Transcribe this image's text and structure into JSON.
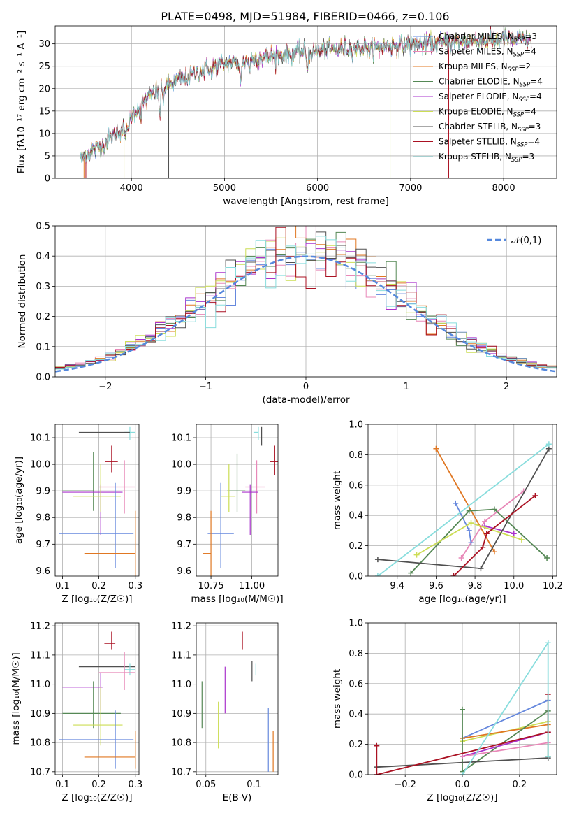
{
  "figure_title": "PLATE=0498, MJD=51984, FIBERID=0466, z=0.106",
  "colors": {
    "chabrier_miles": "#6688dd",
    "salpeter_miles": "#e888b8",
    "kroupa_miles": "#e07722",
    "chabrier_elodie": "#558855",
    "salpeter_elodie": "#aa33cc",
    "kroupa_elodie": "#ccdd55",
    "chabrier_stelib": "#505050",
    "salpeter_stelib": "#aa1122",
    "kroupa_stelib": "#88dddd",
    "gauss": "#5588dd"
  },
  "chart_data": [
    {
      "id": "spectrum",
      "type": "line",
      "xlabel": "wavelength [Angstrom, rest frame]",
      "ylabel": "Flux [fλ10⁻¹⁷ erg cm⁻² s⁻¹ A⁻¹]",
      "xlim": [
        3180,
        8570
      ],
      "ylim": [
        0,
        34
      ],
      "xticks": [
        4000,
        5000,
        6000,
        7000,
        8000
      ],
      "yticks": [
        0,
        5,
        10,
        15,
        20,
        25,
        30
      ],
      "grid": true,
      "legend_position": "right",
      "continuum": {
        "x": [
          3450,
          3600,
          3700,
          3800,
          3900,
          4000,
          4200,
          4400,
          4600,
          4800,
          5000,
          5200,
          5400,
          5600,
          5800,
          6000,
          6200,
          6400,
          6600,
          6800,
          7000,
          7200,
          7400,
          7600,
          7800,
          8000,
          8200,
          8300
        ],
        "y": [
          4.5,
          6.5,
          7.5,
          9.5,
          11.0,
          14.0,
          18.5,
          21.0,
          22.5,
          24.5,
          25.5,
          26.0,
          27.0,
          27.3,
          28.0,
          28.3,
          28.8,
          29.0,
          29.2,
          29.5,
          29.8,
          30.0,
          30.3,
          30.5,
          30.7,
          31.0,
          31.0,
          30.5
        ]
      },
      "absorption_features": [
        {
          "x": 3934,
          "depth": 4
        },
        {
          "x": 3969,
          "depth": 4
        },
        {
          "x": 4102,
          "depth": 3
        },
        {
          "x": 4304,
          "depth": 6
        },
        {
          "x": 4340,
          "depth": 3
        },
        {
          "x": 4861,
          "depth": 2
        },
        {
          "x": 5175,
          "depth": 5
        },
        {
          "x": 5270,
          "depth": 2
        },
        {
          "x": 5890,
          "depth": 4
        },
        {
          "x": 6563,
          "depth": 1.5
        }
      ],
      "series": [
        {
          "name": "Chabrier MILES, N",
          "sub": "SSP",
          "suffix": "=3",
          "color_key": "chabrier_miles"
        },
        {
          "name": "Salpeter MILES, N",
          "sub": "SSP",
          "suffix": "=4",
          "color_key": "salpeter_miles"
        },
        {
          "name": "Kroupa MILES, N",
          "sub": "SSP",
          "suffix": "=2",
          "color_key": "kroupa_miles",
          "dropouts": [
            3490,
            7405
          ]
        },
        {
          "name": "Chabrier ELODIE, N",
          "sub": "SSP",
          "suffix": "=4",
          "color_key": "chabrier_elodie"
        },
        {
          "name": "Salpeter ELODIE, N",
          "sub": "SSP",
          "suffix": "=4",
          "color_key": "salpeter_elodie"
        },
        {
          "name": "Kroupa ELODIE, N",
          "sub": "SSP",
          "suffix": "=4",
          "color_key": "kroupa_elodie",
          "dropouts": [
            3920,
            6780
          ]
        },
        {
          "name": "Chabrier STELIB, N",
          "sub": "SSP",
          "suffix": "=3",
          "color_key": "chabrier_stelib",
          "dropouts": [
            4400
          ]
        },
        {
          "name": "Salpeter STELIB, N",
          "sub": "SSP",
          "suffix": "=4",
          "color_key": "salpeter_stelib",
          "dropouts": [
            3510,
            7410
          ]
        },
        {
          "name": "Kroupa STELIB, N",
          "sub": "SSP",
          "suffix": "=3",
          "color_key": "kroupa_stelib"
        }
      ]
    },
    {
      "id": "residuals",
      "type": "step",
      "xlabel": "(data-model)/error",
      "ylabel": "Normed distribution",
      "xlim": [
        -2.5,
        2.5
      ],
      "ylim": [
        0,
        0.5
      ],
      "xticks": [
        -2,
        -1,
        0,
        1,
        2
      ],
      "yticks": [
        0.0,
        0.1,
        0.2,
        0.3,
        0.4,
        0.5
      ],
      "grid": true,
      "legend_position": "top-right",
      "bin_edges": [
        -2.5,
        2.5
      ],
      "nbins": 50,
      "gaussian": {
        "label": "𝒩(0,1)",
        "mean": 0,
        "sigma": 1
      }
    },
    {
      "id": "age_vs_Z",
      "type": "errorbar",
      "xlabel": "Z [log₁₀(Z/Z☉)]",
      "ylabel": "age  [log₁₀(age/yr)]",
      "xlim": [
        0.08,
        0.31
      ],
      "ylim": [
        9.58,
        10.15
      ],
      "xticks": [
        0.1,
        0.2,
        0.3
      ],
      "yticks": [
        9.6,
        9.7,
        9.8,
        9.9,
        10.0,
        10.1
      ],
      "grid": true,
      "points": [
        {
          "color_key": "kroupa_stelib",
          "x": 0.285,
          "xerr": [
            0.015,
            0.015
          ],
          "y": 10.12,
          "yerr": [
            0.03,
            0.02
          ]
        },
        {
          "color_key": "chabrier_stelib",
          "x": 0.285,
          "xerr": [
            0.14,
            0.0
          ],
          "y": 10.12,
          "yerr": [
            0.0,
            0.0
          ]
        },
        {
          "color_key": "salpeter_stelib",
          "x": 0.235,
          "xerr": [
            0.017,
            0.017
          ],
          "y": 10.01,
          "yerr": [
            0.04,
            0.06
          ]
        },
        {
          "color_key": "salpeter_miles",
          "x": 0.27,
          "xerr": [
            0.07,
            0.03
          ],
          "y": 9.915,
          "yerr": [
            0.1,
            0.1
          ]
        },
        {
          "color_key": "chabrier_elodie",
          "x": 0.185,
          "xerr": [
            0.085,
            0.0
          ],
          "y": 9.9,
          "yerr": [
            0.075,
            0.145
          ]
        },
        {
          "color_key": "salpeter_elodie",
          "x": 0.205,
          "xerr": [
            0.105,
            0.06
          ],
          "y": 9.895,
          "yerr": [
            0.16,
            0.03
          ]
        },
        {
          "color_key": "kroupa_elodie",
          "x": 0.205,
          "xerr": [
            0.075,
            0.055
          ],
          "y": 9.88,
          "yerr": [
            0.06,
            0.12
          ]
        },
        {
          "color_key": "chabrier_miles",
          "x": 0.245,
          "xerr": [
            0.155,
            0.05
          ],
          "y": 9.74,
          "yerr": [
            0.13,
            0.19
          ]
        },
        {
          "color_key": "kroupa_miles",
          "x": 0.3,
          "xerr": [
            0.14,
            0.0
          ],
          "y": 9.665,
          "yerr": [
            0.1,
            0.16
          ]
        }
      ]
    },
    {
      "id": "age_vs_mass",
      "type": "errorbar",
      "xlabel": "mass [log₁₀(M/M☉)]",
      "ylabel": "",
      "xlim": [
        10.66,
        11.16
      ],
      "ylim": [
        9.58,
        10.15
      ],
      "xticks": [
        10.75,
        11.0
      ],
      "xticklabels": [
        "10.75",
        "11.00"
      ],
      "yticks": [
        9.6,
        9.7,
        9.8,
        9.9,
        10.0,
        10.1
      ],
      "grid": true,
      "points": [
        {
          "color_key": "kroupa_stelib",
          "x": 11.04,
          "xerr": [
            0.03,
            0.0
          ],
          "y": 10.12,
          "yerr": [
            0.03,
            0.02
          ]
        },
        {
          "color_key": "chabrier_stelib",
          "x": 11.06,
          "xerr": [
            0.0,
            0.0
          ],
          "y": 10.12,
          "yerr": [
            0.05,
            0.02
          ]
        },
        {
          "color_key": "salpeter_stelib",
          "x": 11.14,
          "xerr": [
            0.03,
            0.03
          ],
          "y": 10.01,
          "yerr": [
            0.05,
            0.06
          ]
        },
        {
          "color_key": "salpeter_miles",
          "x": 11.03,
          "xerr": [
            0.07,
            0.05
          ],
          "y": 9.915,
          "yerr": [
            0.1,
            0.1
          ]
        },
        {
          "color_key": "chabrier_elodie",
          "x": 10.91,
          "xerr": [
            0.06,
            0.05
          ],
          "y": 9.9,
          "yerr": [
            0.08,
            0.14
          ]
        },
        {
          "color_key": "salpeter_elodie",
          "x": 10.99,
          "xerr": [
            0.05,
            0.05
          ],
          "y": 9.895,
          "yerr": [
            0.16,
            0.03
          ]
        },
        {
          "color_key": "kroupa_elodie",
          "x": 10.86,
          "xerr": [
            0.05,
            0.04
          ],
          "y": 9.88,
          "yerr": [
            0.06,
            0.12
          ]
        },
        {
          "color_key": "chabrier_miles",
          "x": 10.81,
          "xerr": [
            0.08,
            0.08
          ],
          "y": 9.74,
          "yerr": [
            0.13,
            0.19
          ]
        },
        {
          "color_key": "kroupa_miles",
          "x": 10.75,
          "xerr": [
            0.05,
            0.0
          ],
          "y": 9.665,
          "yerr": [
            0.1,
            0.16
          ]
        }
      ]
    },
    {
      "id": "weight_vs_age",
      "type": "line",
      "xlabel": "age  [log₁₀(age/yr)]",
      "ylabel": "mass weight",
      "xlim": [
        9.25,
        10.22
      ],
      "ylim": [
        0,
        1.0
      ],
      "xticks": [
        9.4,
        9.6,
        9.8,
        10.0,
        10.2
      ],
      "yticks": [
        0.0,
        0.2,
        0.4,
        0.6,
        0.8,
        1.0
      ],
      "grid": true,
      "series": [
        {
          "color_key": "kroupa_miles",
          "x": [
            9.6,
            9.9
          ],
          "y": [
            0.84,
            0.16
          ]
        },
        {
          "color_key": "salpeter_miles",
          "x": [
            9.73,
            9.85,
            10.05
          ],
          "y": [
            0.12,
            0.36,
            0.56
          ]
        },
        {
          "color_key": "chabrier_miles",
          "x": [
            9.7,
            9.77,
            9.78
          ],
          "y": [
            0.48,
            0.3,
            0.22
          ]
        },
        {
          "color_key": "chabrier_elodie",
          "x": [
            9.47,
            9.77,
            9.9,
            10.17
          ],
          "y": [
            0.02,
            0.43,
            0.44,
            0.12
          ]
        },
        {
          "color_key": "salpeter_elodie",
          "x": [
            9.85,
            10.0
          ],
          "y": [
            0.33,
            0.28
          ]
        },
        {
          "color_key": "kroupa_elodie",
          "x": [
            9.5,
            9.78,
            10.04
          ],
          "y": [
            0.14,
            0.35,
            0.24
          ]
        },
        {
          "color_key": "chabrier_stelib",
          "x": [
            9.3,
            9.83,
            10.18
          ],
          "y": [
            0.11,
            0.05,
            0.84
          ]
        },
        {
          "color_key": "salpeter_stelib",
          "x": [
            9.69,
            9.84,
            9.86,
            10.11
          ],
          "y": [
            0.0,
            0.19,
            0.28,
            0.53
          ]
        },
        {
          "color_key": "kroupa_stelib",
          "x": [
            9.3,
            10.18
          ],
          "y": [
            0.0,
            0.87
          ]
        }
      ]
    },
    {
      "id": "mass_vs_Z",
      "type": "errorbar",
      "xlabel": "Z [log₁₀(Z/Z☉)]",
      "ylabel": "mass [log₁₀(M/M☉)]",
      "xlim": [
        0.08,
        0.31
      ],
      "ylim": [
        10.69,
        11.21
      ],
      "xticks": [
        0.1,
        0.2,
        0.3
      ],
      "yticks": [
        10.7,
        10.8,
        10.9,
        11.0,
        11.1,
        11.2
      ],
      "grid": true,
      "points": [
        {
          "color_key": "salpeter_stelib",
          "x": 0.235,
          "xerr": [
            0.02,
            0.01
          ],
          "y": 11.14,
          "yerr": [
            0.02,
            0.04
          ]
        },
        {
          "color_key": "chabrier_stelib",
          "x": 0.285,
          "xerr": [
            0.14,
            0.015
          ],
          "y": 11.06,
          "yerr": [
            0.0,
            0.0
          ]
        },
        {
          "color_key": "kroupa_stelib",
          "x": 0.285,
          "xerr": [
            0.015,
            0.015
          ],
          "y": 11.05,
          "yerr": [
            0.02,
            0.02
          ]
        },
        {
          "color_key": "salpeter_miles",
          "x": 0.27,
          "xerr": [
            0.07,
            0.03
          ],
          "y": 11.04,
          "yerr": [
            0.06,
            0.07
          ]
        },
        {
          "color_key": "salpeter_elodie",
          "x": 0.205,
          "xerr": [
            0.105,
            0.005
          ],
          "y": 10.99,
          "yerr": [
            0.08,
            0.05
          ]
        },
        {
          "color_key": "chabrier_elodie",
          "x": 0.185,
          "xerr": [
            0.085,
            0.075
          ],
          "y": 10.9,
          "yerr": [
            0.05,
            0.11
          ]
        },
        {
          "color_key": "kroupa_elodie",
          "x": 0.205,
          "xerr": [
            0.075,
            0.06
          ],
          "y": 10.86,
          "yerr": [
            0.07,
            0.13
          ]
        },
        {
          "color_key": "chabrier_miles",
          "x": 0.245,
          "xerr": [
            0.155,
            0.05
          ],
          "y": 10.81,
          "yerr": [
            0.1,
            0.1
          ]
        },
        {
          "color_key": "kroupa_miles",
          "x": 0.3,
          "xerr": [
            0.14,
            0.0
          ],
          "y": 10.75,
          "yerr": [
            0.04,
            0.09
          ]
        }
      ]
    },
    {
      "id": "mass_vs_ebv",
      "type": "errorbar",
      "xlabel": "E(B-V)",
      "ylabel": "",
      "xlim": [
        0.04,
        0.125
      ],
      "ylim": [
        10.69,
        11.21
      ],
      "xticks": [
        0.05,
        0.1
      ],
      "yticks": [
        10.7,
        10.8,
        10.9,
        11.0,
        11.1,
        11.2
      ],
      "grid": true,
      "points": [
        {
          "color_key": "salpeter_stelib",
          "x": 0.088,
          "xerr": [
            0.0,
            0.0
          ],
          "y": 11.15,
          "yerr": [
            0.03,
            0.03
          ]
        },
        {
          "color_key": "chabrier_stelib",
          "x": 0.098,
          "xerr": [
            0.0,
            0.0
          ],
          "y": 11.05,
          "yerr": [
            0.04,
            0.03
          ]
        },
        {
          "color_key": "kroupa_stelib",
          "x": 0.102,
          "xerr": [
            0.0,
            0.0
          ],
          "y": 11.05,
          "yerr": [
            0.02,
            0.02
          ]
        },
        {
          "color_key": "chabrier_elodie",
          "x": 0.046,
          "xerr": [
            0.0,
            0.0
          ],
          "y": 10.93,
          "yerr": [
            0.08,
            0.08
          ]
        },
        {
          "color_key": "salpeter_elodie",
          "x": 0.07,
          "xerr": [
            0.0,
            0.0
          ],
          "y": 10.98,
          "yerr": [
            0.08,
            0.08
          ]
        },
        {
          "color_key": "kroupa_elodie",
          "x": 0.063,
          "xerr": [
            0.0,
            0.0
          ],
          "y": 10.86,
          "yerr": [
            0.08,
            0.08
          ]
        },
        {
          "color_key": "chabrier_miles",
          "x": 0.115,
          "xerr": [
            0.0,
            0.0
          ],
          "y": 10.77,
          "yerr": [
            0.07,
            0.15
          ]
        },
        {
          "color_key": "kroupa_miles",
          "x": 0.12,
          "xerr": [
            0.0,
            0.0
          ],
          "y": 10.77,
          "yerr": [
            0.07,
            0.07
          ]
        }
      ]
    },
    {
      "id": "weight_vs_Z",
      "type": "line",
      "xlabel": "Z [log₁₀(Z/Z☉)]",
      "ylabel": "mass weight",
      "xlim": [
        -0.33,
        0.33
      ],
      "ylim": [
        0,
        1.0
      ],
      "xticks": [
        -0.2,
        0.0,
        0.2
      ],
      "yticks": [
        0.0,
        0.2,
        0.4,
        0.6,
        0.8,
        1.0
      ],
      "grid": true,
      "series": [
        {
          "color_key": "chabrier_miles",
          "x": [
            0.0,
            0.3
          ],
          "y": [
            0.24,
            0.49
          ]
        },
        {
          "color_key": "kroupa_elodie",
          "x": [
            0.0,
            0.3
          ],
          "y": [
            0.22,
            0.35
          ]
        },
        {
          "color_key": "kroupa_miles",
          "x": [
            0.0,
            0.3
          ],
          "y": [
            0.24,
            0.33
          ]
        },
        {
          "color_key": "chabrier_elodie",
          "x": [
            0.0,
            0.0,
            0.3,
            0.3
          ],
          "y": [
            0.43,
            0.02,
            0.42,
            0.12
          ]
        },
        {
          "color_key": "salpeter_elodie",
          "x": [
            0.0,
            0.3
          ],
          "y": [
            0.12,
            0.28
          ]
        },
        {
          "color_key": "salpeter_miles",
          "x": [
            0.0,
            0.3
          ],
          "y": [
            0.12,
            0.21
          ]
        },
        {
          "color_key": "chabrier_stelib",
          "x": [
            -0.3,
            0.3
          ],
          "y": [
            0.05,
            0.11
          ]
        },
        {
          "color_key": "salpeter_stelib",
          "x": [
            -0.3,
            -0.3,
            0.3,
            0.3
          ],
          "y": [
            0.19,
            0.0,
            0.28,
            0.53
          ]
        },
        {
          "color_key": "kroupa_stelib",
          "x": [
            0.0,
            0.3,
            0.3
          ],
          "y": [
            0.0,
            0.87,
            0.12
          ]
        }
      ]
    }
  ]
}
